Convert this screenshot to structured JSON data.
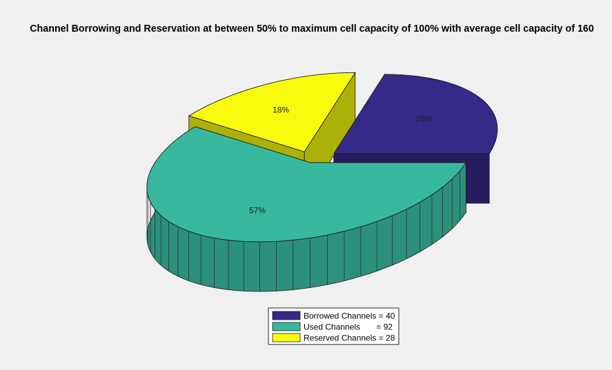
{
  "chart_data": {
    "type": "pie",
    "style": "3d",
    "title": "Channel Borrowing and Reservation at between 50% to maximum cell capacity of 100% with average cell capacity of 160",
    "slices": [
      {
        "label": "Borrowed Channels = 40",
        "value": 40,
        "percent_label": "25%",
        "color": "#352a87",
        "exploded": true
      },
      {
        "label": "Used Channels       = 92",
        "value": 92,
        "percent_label": "57%",
        "color": "#38b99e",
        "exploded": false
      },
      {
        "label": "Reserved Channels = 28",
        "value": 28,
        "percent_label": "18%",
        "color": "#f9fb0e",
        "exploded": true
      }
    ],
    "legend_position": "bottom"
  }
}
